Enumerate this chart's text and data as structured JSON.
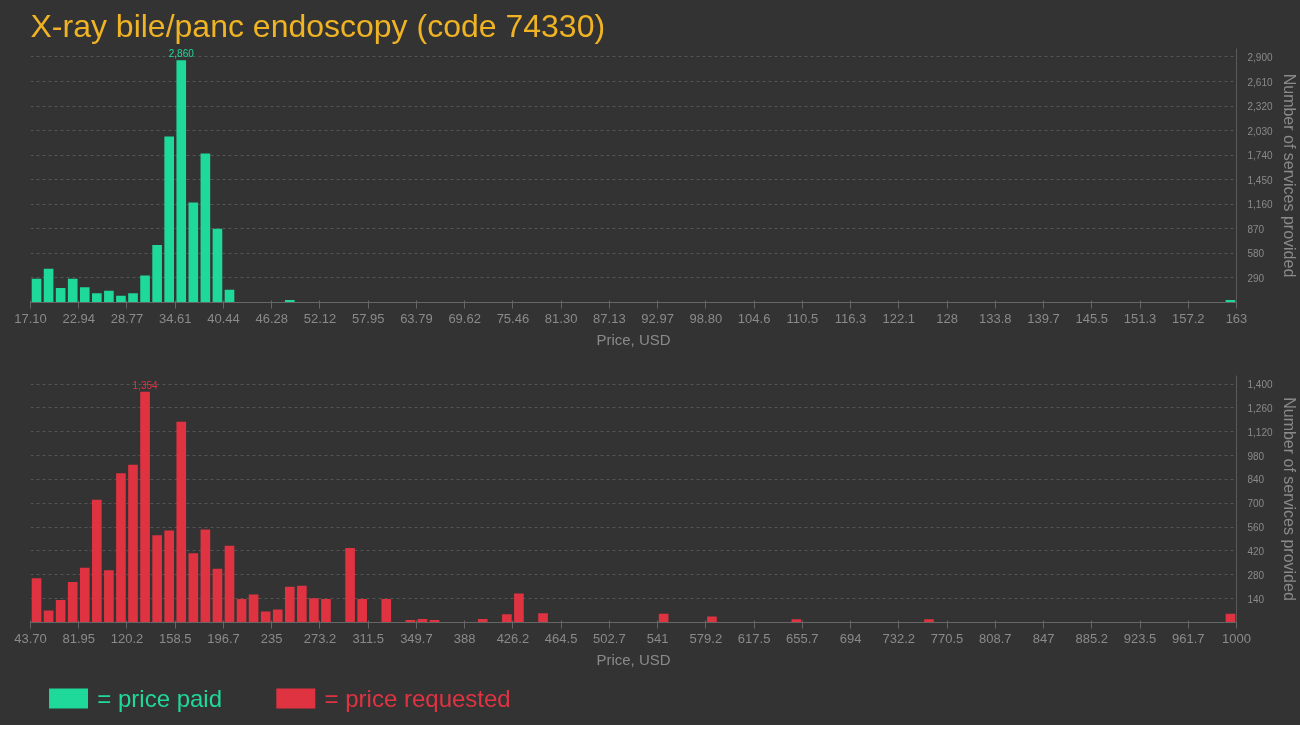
{
  "chart_data": [
    {
      "type": "histogram",
      "title": "X-ray bile/panc endoscopy (code 74330)",
      "xlabel": "Price, USD",
      "ylabel": "Number of services provided",
      "bins": [
        17.1,
        18.559,
        20.018,
        21.477,
        22.936,
        24.395,
        25.854,
        27.313,
        28.772,
        30.231,
        31.69,
        33.149,
        34.608,
        36.067,
        37.526,
        38.985,
        40.444,
        41.903,
        43.362,
        44.821,
        46.28,
        47.739,
        49.198,
        50.657,
        52.116,
        53.575,
        55.034,
        56.493,
        57.952,
        59.411,
        60.87,
        62.329,
        63.788,
        65.247,
        66.706,
        68.165,
        69.624,
        71.083,
        72.542,
        74.001,
        75.46,
        76.919,
        78.378,
        79.837,
        81.296,
        82.755,
        84.214,
        85.673,
        87.132,
        88.591,
        90.05,
        91.509,
        92.968,
        94.427,
        95.886,
        97.345,
        98.804,
        100.263,
        101.722,
        103.181,
        104.64,
        106.099,
        107.558,
        109.017,
        110.476,
        111.935,
        113.394,
        114.853,
        116.312,
        117.771,
        119.23,
        120.689,
        122.148,
        123.607,
        125.066,
        126.525,
        127.984,
        129.443,
        130.902,
        132.361,
        133.82,
        135.279,
        136.738,
        138.197,
        139.656,
        141.115,
        142.574,
        144.033,
        145.492,
        146.951,
        148.41,
        149.869,
        151.328,
        152.787,
        154.246,
        155.705,
        157.164,
        158.623,
        160.082,
        161.541,
        163
      ],
      "series": [
        {
          "name": "= price paid",
          "color": "#1fd99a",
          "values": [
            280,
            400,
            170,
            280,
            180,
            110,
            140,
            80,
            110,
            320,
            680,
            1960,
            2860,
            1180,
            1760,
            870,
            150,
            0,
            0,
            0,
            0,
            30,
            0,
            0,
            0,
            0,
            0,
            0,
            0,
            0,
            0,
            0,
            0,
            0,
            0,
            0,
            0,
            0,
            0,
            0,
            0,
            0,
            0,
            0,
            0,
            0,
            0,
            0,
            0,
            0,
            0,
            0,
            0,
            0,
            0,
            0,
            0,
            0,
            0,
            0,
            0,
            0,
            0,
            0,
            0,
            0,
            0,
            0,
            0,
            0,
            0,
            0,
            0,
            0,
            0,
            0,
            0,
            0,
            0,
            0,
            0,
            0,
            0,
            0,
            0,
            0,
            0,
            0,
            0,
            0,
            0,
            0,
            0,
            0,
            0,
            0,
            0,
            0,
            0,
            30
          ],
          "value_labels": [
            null,
            null,
            null,
            null,
            null,
            null,
            null,
            null,
            null,
            null,
            null,
            null,
            "2,860",
            null,
            null,
            null,
            null,
            null,
            null,
            null,
            null,
            null,
            null,
            null,
            null,
            null,
            null,
            null,
            null,
            null,
            null,
            null,
            null,
            null,
            null,
            null,
            null,
            null,
            null,
            null,
            null,
            null,
            null,
            null,
            null,
            null,
            null,
            null,
            null,
            null,
            null,
            null,
            null,
            null,
            null,
            null,
            null,
            null,
            null,
            null,
            null,
            null,
            null,
            null,
            null,
            null,
            null,
            null,
            null,
            null,
            null,
            null,
            null,
            null,
            null,
            null,
            null,
            null,
            null,
            null,
            null,
            null,
            null,
            null,
            null,
            null,
            null,
            null,
            null,
            null,
            null,
            null,
            null,
            null,
            null,
            null,
            null,
            null,
            null,
            null
          ]
        }
      ],
      "xlim": [
        17.1,
        163
      ],
      "xticks": [
        {
          "value": 17.1,
          "label": "17.10"
        },
        {
          "value": 22.936,
          "label": "22.94"
        },
        {
          "value": 28.772,
          "label": "28.77"
        },
        {
          "value": 34.608,
          "label": "34.61"
        },
        {
          "value": 40.444,
          "label": "40.44"
        },
        {
          "value": 46.28,
          "label": "46.28"
        },
        {
          "value": 52.116,
          "label": "52.12"
        },
        {
          "value": 57.952,
          "label": "57.95"
        },
        {
          "value": 63.788,
          "label": "63.79"
        },
        {
          "value": 69.624,
          "label": "69.62"
        },
        {
          "value": 75.46,
          "label": "75.46"
        },
        {
          "value": 81.296,
          "label": "81.30"
        },
        {
          "value": 87.132,
          "label": "87.13"
        },
        {
          "value": 92.968,
          "label": "92.97"
        },
        {
          "value": 98.804,
          "label": "98.80"
        },
        {
          "value": 104.64,
          "label": "104.6"
        },
        {
          "value": 110.476,
          "label": "110.5"
        },
        {
          "value": 116.312,
          "label": "116.3"
        },
        {
          "value": 122.148,
          "label": "122.1"
        },
        {
          "value": 127.984,
          "label": "128"
        },
        {
          "value": 133.82,
          "label": "133.8"
        },
        {
          "value": 139.656,
          "label": "139.7"
        },
        {
          "value": 145.492,
          "label": "145.5"
        },
        {
          "value": 151.328,
          "label": "151.3"
        },
        {
          "value": 157.164,
          "label": "157.2"
        },
        {
          "value": 163,
          "label": "163"
        }
      ],
      "ylim": [
        0,
        3000
      ],
      "yticks": [
        {
          "value": 290,
          "label": "290"
        },
        {
          "value": 580,
          "label": "580"
        },
        {
          "value": 870,
          "label": "870"
        },
        {
          "value": 1160,
          "label": "1,160"
        },
        {
          "value": 1450,
          "label": "1,450"
        },
        {
          "value": 1740,
          "label": "1,740"
        },
        {
          "value": 2030,
          "label": "2,030"
        },
        {
          "value": 2320,
          "label": "2,320"
        },
        {
          "value": 2610,
          "label": "2,610"
        },
        {
          "value": 2900,
          "label": "2,900"
        }
      ],
      "grid": "y",
      "legend": "bottom left"
    },
    {
      "type": "histogram",
      "xlabel": "Price, USD",
      "ylabel": "Number of services provided",
      "bins": [
        43.7,
        53.263,
        62.826,
        72.389,
        81.952,
        91.515,
        101.078,
        110.641,
        120.204,
        129.767,
        139.33,
        148.893,
        158.456,
        168.019,
        177.582,
        187.145,
        196.708,
        206.271,
        215.834,
        225.397,
        234.96,
        244.523,
        254.086,
        263.649,
        273.212,
        282.775,
        292.338,
        301.901,
        311.464,
        321.027,
        330.59,
        340.153,
        349.716,
        359.279,
        368.842,
        378.405,
        387.968,
        397.531,
        407.094,
        416.657,
        426.22,
        435.783,
        445.346,
        454.909,
        464.472,
        474.035,
        483.598,
        493.161,
        502.724,
        512.287,
        521.85,
        531.413,
        540.976,
        550.539,
        560.102,
        569.665,
        579.228,
        588.791,
        598.354,
        607.917,
        617.48,
        627.043,
        636.606,
        646.169,
        655.732,
        665.295,
        674.858,
        684.421,
        693.984,
        703.547,
        713.11,
        722.673,
        732.236,
        741.799,
        751.362,
        760.925,
        770.488,
        780.051,
        789.614,
        799.177,
        808.74,
        818.303,
        827.866,
        837.429,
        846.992,
        856.555,
        866.118,
        875.681,
        885.244,
        894.807,
        904.37,
        913.933,
        923.496,
        933.059,
        942.622,
        952.185,
        961.748,
        971.311,
        980.874,
        990.437,
        1000
      ],
      "series": [
        {
          "name": "= price requested",
          "color": "#e03342",
          "values": [
            260,
            70,
            132,
            238,
            322,
            720,
            306,
            876,
            926,
            1354,
            512,
            540,
            1178,
            406,
            546,
            316,
            450,
            138,
            164,
            64,
            76,
            210,
            216,
            142,
            138,
            0,
            438,
            138,
            0,
            138,
            0,
            14,
            20,
            14,
            0,
            0,
            0,
            20,
            0,
            48,
            170,
            0,
            54,
            0,
            0,
            0,
            0,
            0,
            0,
            0,
            0,
            0,
            51,
            0,
            0,
            0,
            35,
            0,
            0,
            0,
            0,
            0,
            0,
            19,
            0,
            0,
            0,
            0,
            0,
            0,
            0,
            0,
            0,
            0,
            19,
            0,
            0,
            0,
            0,
            0,
            0,
            0,
            0,
            0,
            0,
            0,
            0,
            0,
            0,
            0,
            0,
            0,
            0,
            0,
            0,
            0,
            0,
            0,
            0,
            51
          ],
          "value_labels": [
            null,
            null,
            null,
            null,
            null,
            null,
            null,
            null,
            null,
            "1,354",
            null,
            null,
            null,
            null,
            null,
            null,
            null,
            null,
            null,
            null,
            null,
            null,
            null,
            null,
            null,
            null,
            null,
            null,
            null,
            null,
            null,
            null,
            null,
            null,
            null,
            null,
            null,
            null,
            null,
            null,
            null,
            null,
            null,
            null,
            null,
            null,
            null,
            null,
            null,
            null,
            null,
            null,
            null,
            null,
            null,
            null,
            null,
            null,
            null,
            null,
            null,
            null,
            null,
            null,
            null,
            null,
            null,
            null,
            null,
            null,
            null,
            null,
            null,
            null,
            null,
            null,
            null,
            null,
            null,
            null,
            null,
            null,
            null,
            null,
            null,
            null,
            null,
            null,
            null,
            null,
            null,
            null,
            null,
            null,
            null,
            null,
            null,
            null,
            null,
            null
          ]
        }
      ],
      "xlim": [
        43.7,
        1000
      ],
      "xticks": [
        {
          "value": 43.7,
          "label": "43.70"
        },
        {
          "value": 81.952,
          "label": "81.95"
        },
        {
          "value": 120.204,
          "label": "120.2"
        },
        {
          "value": 158.456,
          "label": "158.5"
        },
        {
          "value": 196.708,
          "label": "196.7"
        },
        {
          "value": 234.96,
          "label": "235"
        },
        {
          "value": 273.212,
          "label": "273.2"
        },
        {
          "value": 311.464,
          "label": "311.5"
        },
        {
          "value": 349.716,
          "label": "349.7"
        },
        {
          "value": 387.968,
          "label": "388"
        },
        {
          "value": 426.22,
          "label": "426.2"
        },
        {
          "value": 464.472,
          "label": "464.5"
        },
        {
          "value": 502.724,
          "label": "502.7"
        },
        {
          "value": 540.976,
          "label": "541"
        },
        {
          "value": 579.228,
          "label": "579.2"
        },
        {
          "value": 617.48,
          "label": "617.5"
        },
        {
          "value": 655.732,
          "label": "655.7"
        },
        {
          "value": 693.984,
          "label": "694"
        },
        {
          "value": 732.236,
          "label": "732.2"
        },
        {
          "value": 770.488,
          "label": "770.5"
        },
        {
          "value": 808.74,
          "label": "808.7"
        },
        {
          "value": 846.992,
          "label": "847"
        },
        {
          "value": 885.244,
          "label": "885.2"
        },
        {
          "value": 923.496,
          "label": "923.5"
        },
        {
          "value": 961.748,
          "label": "961.7"
        },
        {
          "value": 1000,
          "label": "1000"
        }
      ],
      "ylim": [
        0,
        1450
      ],
      "yticks": [
        {
          "value": 140,
          "label": "140"
        },
        {
          "value": 280,
          "label": "280"
        },
        {
          "value": 420,
          "label": "420"
        },
        {
          "value": 560,
          "label": "560"
        },
        {
          "value": 700,
          "label": "700"
        },
        {
          "value": 840,
          "label": "840"
        },
        {
          "value": 980,
          "label": "980"
        },
        {
          "value": 1120,
          "label": "1,120"
        },
        {
          "value": 1260,
          "label": "1,260"
        },
        {
          "value": 1400,
          "label": "1,400"
        }
      ],
      "grid": "y",
      "legend": "bottom left"
    }
  ]
}
